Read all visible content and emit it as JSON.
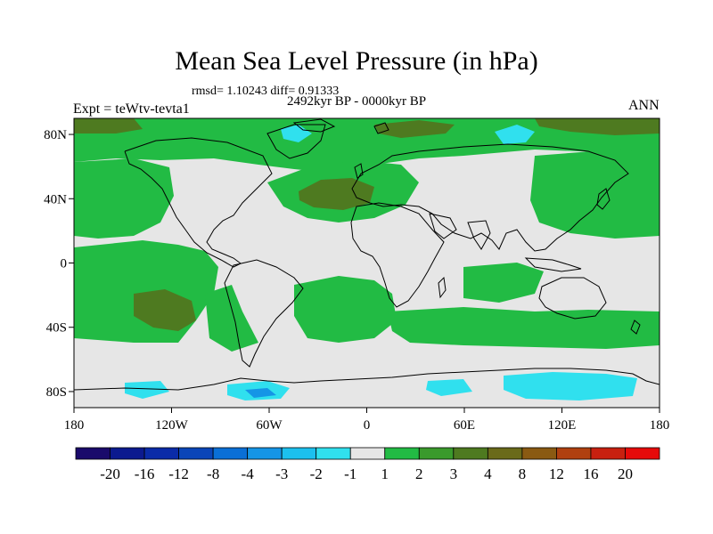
{
  "title": "Mean Sea Level Pressure (in hPa)",
  "stats": "rmsd= 1.10243 diff= 0.91333",
  "period": "2492kyr BP - 0000kyr BP",
  "expt_label": "Expt = teWtv-tevta1",
  "season": "ANN",
  "axes": {
    "x_ticks": [
      "180",
      "120W",
      "60W",
      "0",
      "60E",
      "120E",
      "180"
    ],
    "y_ticks": [
      "80N",
      "40N",
      "0",
      "40S",
      "80S"
    ]
  },
  "colorbar": {
    "labels": [
      "-20",
      "-16",
      "-12",
      "-8",
      "-4",
      "-3",
      "-2",
      "-1",
      "1",
      "2",
      "3",
      "4",
      "8",
      "12",
      "16",
      "20"
    ],
    "colors": [
      "#1a0a6b",
      "#0c1a8f",
      "#0a2ba8",
      "#0a45b8",
      "#0a6fd6",
      "#1595e6",
      "#1cc0ee",
      "#30e0ee",
      "#e6e6e6",
      "#22bb44",
      "#3a9a2c",
      "#4e7a20",
      "#6a6a1a",
      "#8a5a12",
      "#b04010",
      "#c82010",
      "#e60a0a"
    ]
  },
  "colors": {
    "land": "#e6e6e6",
    "pos1": "#22bb44",
    "pos2": "#4e7a20",
    "neg1": "#30e0ee",
    "neg2": "#1595e6",
    "coast": "#000000"
  }
}
